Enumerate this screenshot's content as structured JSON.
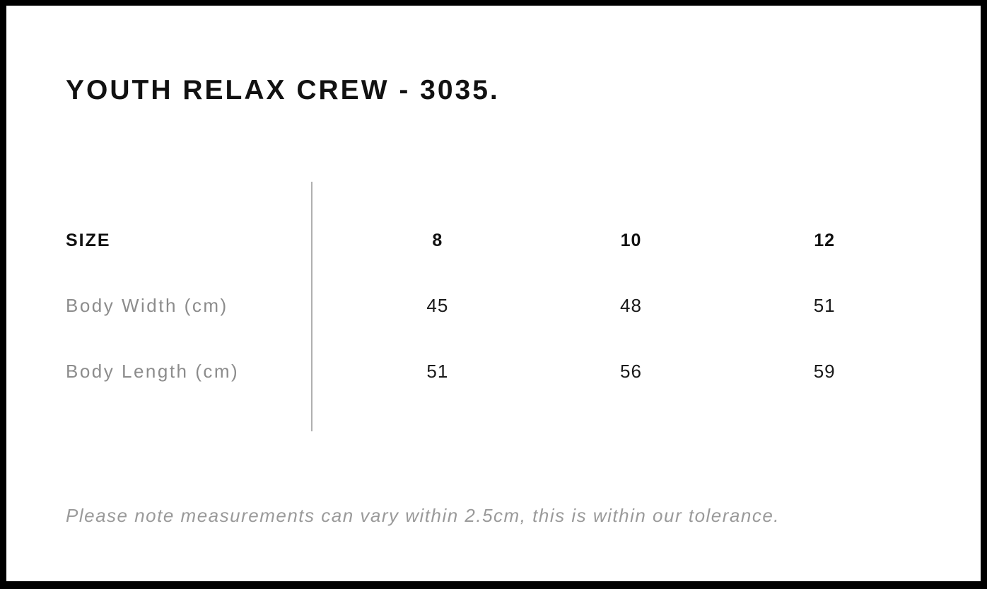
{
  "chart_data": {
    "type": "table",
    "title": "YOUTH RELAX CREW - 3035.",
    "columns": [
      "SIZE",
      "8",
      "10",
      "12"
    ],
    "rows": [
      {
        "label": "Body Width (cm)",
        "values": [
          "45",
          "48",
          "51"
        ]
      },
      {
        "label": "Body Length (cm)",
        "values": [
          "51",
          "56",
          "59"
        ]
      }
    ],
    "note": "Please note measurements can vary within 2.5cm, this is within our tolerance.",
    "layout_hints": {
      "header_style": "bold-black",
      "row_label_style": "gray",
      "value_alignment": "center",
      "divider": "vertical-line-between-labels-and-values"
    }
  },
  "colors": {
    "text_primary": "#111111",
    "label_gray": "#8c8c8c",
    "note_gray": "#9a9a9a",
    "divider_gray": "#b0b0b0",
    "frame_black": "#000000",
    "background": "#ffffff"
  }
}
